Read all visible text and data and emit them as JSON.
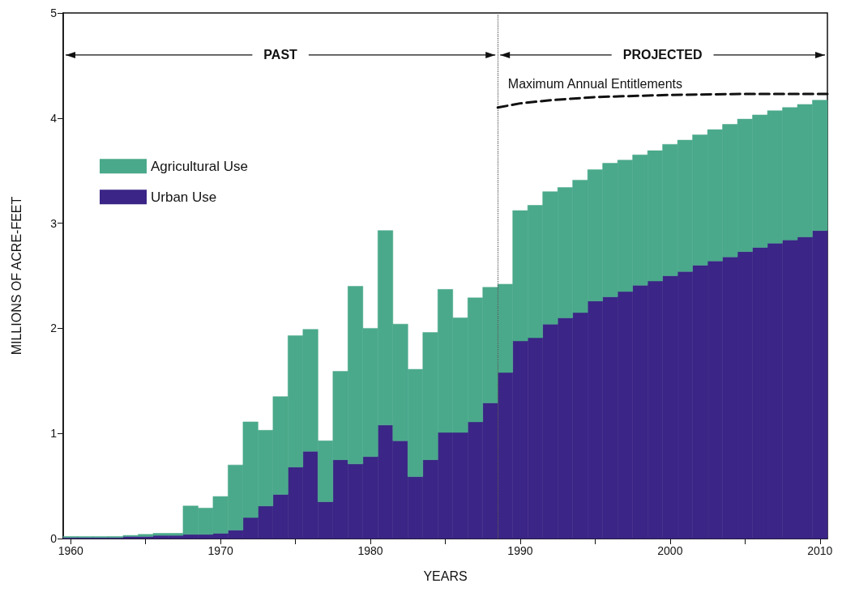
{
  "chart_data": {
    "type": "bar",
    "stacked": true,
    "x": [
      1960,
      1961,
      1962,
      1963,
      1964,
      1965,
      1966,
      1967,
      1968,
      1969,
      1970,
      1971,
      1972,
      1973,
      1974,
      1975,
      1976,
      1977,
      1978,
      1979,
      1980,
      1981,
      1982,
      1983,
      1984,
      1985,
      1986,
      1987,
      1988,
      1989,
      1990,
      1991,
      1992,
      1993,
      1994,
      1995,
      1996,
      1997,
      1998,
      1999,
      2000,
      2001,
      2002,
      2003,
      2004,
      2005,
      2006,
      2007,
      2008,
      2009,
      2010
    ],
    "series": [
      {
        "name": "Urban Use",
        "color": "#3b2586",
        "values": [
          0.01,
          0.01,
          0.01,
          0.01,
          0.02,
          0.02,
          0.03,
          0.03,
          0.04,
          0.04,
          0.05,
          0.08,
          0.2,
          0.31,
          0.42,
          0.68,
          0.83,
          0.35,
          0.75,
          0.71,
          0.78,
          1.08,
          0.93,
          0.59,
          0.75,
          1.01,
          1.01,
          1.11,
          1.29,
          1.58,
          1.88,
          1.91,
          2.04,
          2.1,
          2.15,
          2.26,
          2.3,
          2.35,
          2.41,
          2.45,
          2.5,
          2.54,
          2.6,
          2.64,
          2.68,
          2.73,
          2.77,
          2.81,
          2.84,
          2.87,
          2.93
        ]
      },
      {
        "name": "Agricultural Use",
        "color": "#4aa98b",
        "values": [
          0.01,
          0.01,
          0.01,
          0.01,
          0.01,
          0.02,
          0.02,
          0.02,
          0.27,
          0.25,
          0.35,
          0.62,
          0.91,
          0.72,
          0.93,
          1.25,
          1.16,
          0.58,
          0.84,
          1.69,
          1.22,
          1.85,
          1.11,
          1.02,
          1.21,
          1.36,
          1.09,
          1.18,
          1.1,
          0.84,
          1.24,
          1.26,
          1.26,
          1.24,
          1.26,
          1.25,
          1.27,
          1.25,
          1.24,
          1.24,
          1.25,
          1.25,
          1.24,
          1.25,
          1.26,
          1.26,
          1.26,
          1.26,
          1.26,
          1.26,
          1.24
        ]
      },
      {
        "name": "Maximum Annual Entitlements",
        "type": "line",
        "color": "#111111",
        "line_style": "dashed",
        "marker": "none",
        "x": [
          1988.5,
          1990,
          1992,
          1995,
          2000,
          2005,
          2010.5
        ],
        "values": [
          4.1,
          4.14,
          4.17,
          4.2,
          4.22,
          4.23,
          4.23
        ]
      }
    ],
    "xlabel": "YEARS",
    "ylabel": "MILLIONS OF ACRE-FEET",
    "xlim": [
      1959.5,
      2010.5
    ],
    "xticks": [
      1960,
      {
        "value": 1965,
        "label": null
      },
      1970,
      {
        "value": 1975,
        "label": null
      },
      1980,
      {
        "value": 1985,
        "label": null
      },
      1990,
      {
        "value": 1995,
        "label": null
      },
      2000,
      {
        "value": 2005,
        "label": null
      },
      2010
    ],
    "ylim": [
      0,
      5
    ],
    "yticks": [
      0,
      1,
      2,
      3,
      4,
      5
    ],
    "ref_lines": [
      {
        "axis": "x",
        "value": 1988.5,
        "color": "#555555",
        "line_style": "dotted"
      }
    ],
    "annotations": [
      "PAST",
      "PROJECTED"
    ],
    "legend": "top left",
    "grid": false
  }
}
